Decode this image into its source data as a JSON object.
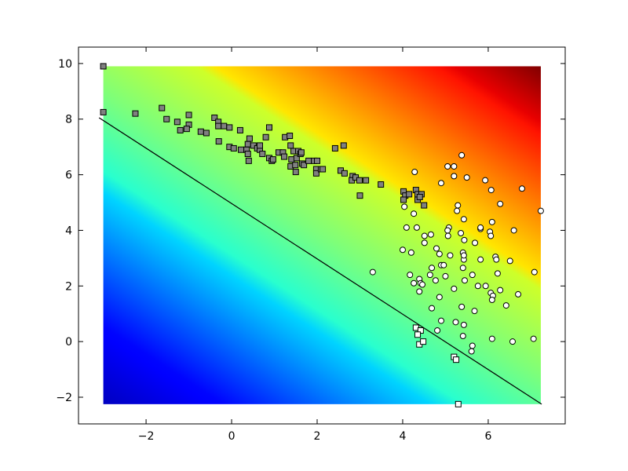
{
  "chart_data": {
    "type": "scatter",
    "colormap": "jet",
    "xlim": [
      -3.58,
      7.8
    ],
    "ylim": [
      -2.96,
      10.59
    ],
    "xticks": [
      {
        "value": -2,
        "label": "−2"
      },
      0,
      2,
      4,
      6
    ],
    "yticks": [
      {
        "value": -2,
        "label": "−2"
      },
      0,
      2,
      4,
      6,
      8,
      10
    ],
    "line": {
      "color": "#000000",
      "x": [
        -3.1,
        7.25
      ],
      "y": [
        8.05,
        -2.25
      ]
    },
    "series": [
      {
        "marker": "square",
        "color": "#808080",
        "x": [
          -3.0,
          -3.0,
          -2.25,
          -1.63,
          -1.52,
          -1.27,
          -1.2,
          -1.0,
          -1.0,
          -1.05,
          -0.72,
          -0.59,
          -0.4,
          -0.31,
          -0.31,
          -0.18,
          -0.05,
          -0.3,
          -0.05,
          0.05,
          0.2,
          0.22,
          0.35,
          0.38,
          0.38,
          0.4,
          0.42,
          0.51,
          0.6,
          0.66,
          0.72,
          0.66,
          0.8,
          0.88,
          0.88,
          0.94,
          0.97,
          1.1,
          1.2,
          1.25,
          1.23,
          1.36,
          1.38,
          1.4,
          1.38,
          1.49,
          1.5,
          1.45,
          1.52,
          1.56,
          1.61,
          1.65,
          1.69,
          1.63,
          1.8,
          1.93,
          1.98,
          1.98,
          2.0,
          2.09,
          2.13,
          2.42,
          2.62,
          2.55,
          2.64,
          2.83,
          2.81,
          2.9,
          2.99,
          3.14,
          3.0,
          3.49,
          4.02,
          4.06,
          4.15,
          4.31,
          4.35,
          4.44,
          4.35,
          4.4,
          4.5,
          4.02
        ],
        "y": [
          9.9,
          8.25,
          8.2,
          8.4,
          8.0,
          7.9,
          7.6,
          8.15,
          7.8,
          7.65,
          7.55,
          7.5,
          8.05,
          7.9,
          7.75,
          7.75,
          7.7,
          7.2,
          7.0,
          6.95,
          7.6,
          6.9,
          6.9,
          7.1,
          6.75,
          6.5,
          7.3,
          7.05,
          6.95,
          6.9,
          6.75,
          7.05,
          7.35,
          7.7,
          6.6,
          6.5,
          6.55,
          6.8,
          6.8,
          7.35,
          6.65,
          7.4,
          7.05,
          6.55,
          6.3,
          6.35,
          6.1,
          6.85,
          6.6,
          6.85,
          6.75,
          6.4,
          6.35,
          6.8,
          6.5,
          6.5,
          6.2,
          6.05,
          6.5,
          6.2,
          6.2,
          6.95,
          7.05,
          6.15,
          6.05,
          5.95,
          5.8,
          5.9,
          5.8,
          5.8,
          5.25,
          5.65,
          5.4,
          5.25,
          5.3,
          5.45,
          5.3,
          5.3,
          5.1,
          5.2,
          4.9,
          5.1
        ]
      },
      {
        "marker": "circle",
        "color": "#ffffff",
        "x": [
          7.23,
          5.38,
          4.28,
          5.05,
          5.2,
          5.2,
          5.5,
          5.93,
          6.07,
          6.28,
          6.79,
          4.9,
          4.04,
          5.29,
          4.26,
          5.27,
          5.43,
          5.08,
          5.82,
          5.82,
          6.09,
          4.33,
          4.09,
          4.66,
          4.51,
          5.05,
          5.06,
          5.36,
          6.04,
          6.06,
          6.6,
          4.51,
          5.69,
          5.44,
          4.0,
          4.2,
          4.79,
          4.86,
          5.11,
          5.41,
          5.43,
          5.43,
          6.17,
          6.19,
          5.82,
          6.51,
          4.9,
          4.96,
          4.68,
          3.3,
          4.17,
          4.64,
          5.0,
          5.41,
          5.63,
          6.22,
          7.08,
          4.26,
          4.39,
          4.42,
          4.46,
          4.77,
          5.45,
          5.76,
          5.94,
          4.39,
          4.86,
          5.2,
          6.06,
          6.11,
          6.09,
          6.28,
          6.7,
          4.68,
          5.38,
          5.68,
          6.42,
          4.9,
          5.24,
          5.43,
          4.81,
          5.41,
          6.09,
          6.57,
          7.06,
          5.63,
          5.61
        ],
        "y": [
          4.7,
          6.7,
          6.1,
          6.3,
          6.3,
          5.95,
          5.9,
          5.8,
          5.45,
          4.95,
          5.5,
          5.7,
          4.85,
          4.9,
          4.6,
          4.7,
          4.4,
          4.1,
          4.05,
          4.1,
          4.3,
          4.1,
          4.1,
          3.85,
          3.8,
          4.0,
          3.8,
          3.9,
          3.95,
          3.8,
          4.0,
          3.55,
          3.55,
          3.65,
          3.3,
          3.2,
          3.35,
          3.15,
          3.1,
          3.2,
          2.95,
          3.1,
          3.05,
          2.95,
          2.95,
          2.9,
          2.75,
          2.75,
          2.65,
          2.5,
          2.4,
          2.4,
          2.35,
          2.65,
          2.4,
          2.45,
          2.5,
          2.1,
          2.25,
          2.1,
          2.05,
          2.2,
          2.2,
          2.0,
          2.0,
          1.8,
          1.6,
          1.9,
          1.75,
          1.65,
          1.5,
          1.85,
          1.7,
          1.2,
          1.25,
          1.1,
          1.3,
          0.75,
          0.7,
          0.6,
          0.4,
          0.2,
          0.1,
          0.0,
          0.1,
          -0.15,
          -0.35
        ]
      },
      {
        "marker": "square",
        "color": "#ffffff",
        "x": [
          4.31,
          4.42,
          4.35,
          4.39,
          4.48,
          5.2,
          5.25,
          5.3
        ],
        "y": [
          0.5,
          0.4,
          0.25,
          -0.1,
          0.0,
          -0.55,
          -0.65,
          -2.25
        ]
      }
    ]
  }
}
